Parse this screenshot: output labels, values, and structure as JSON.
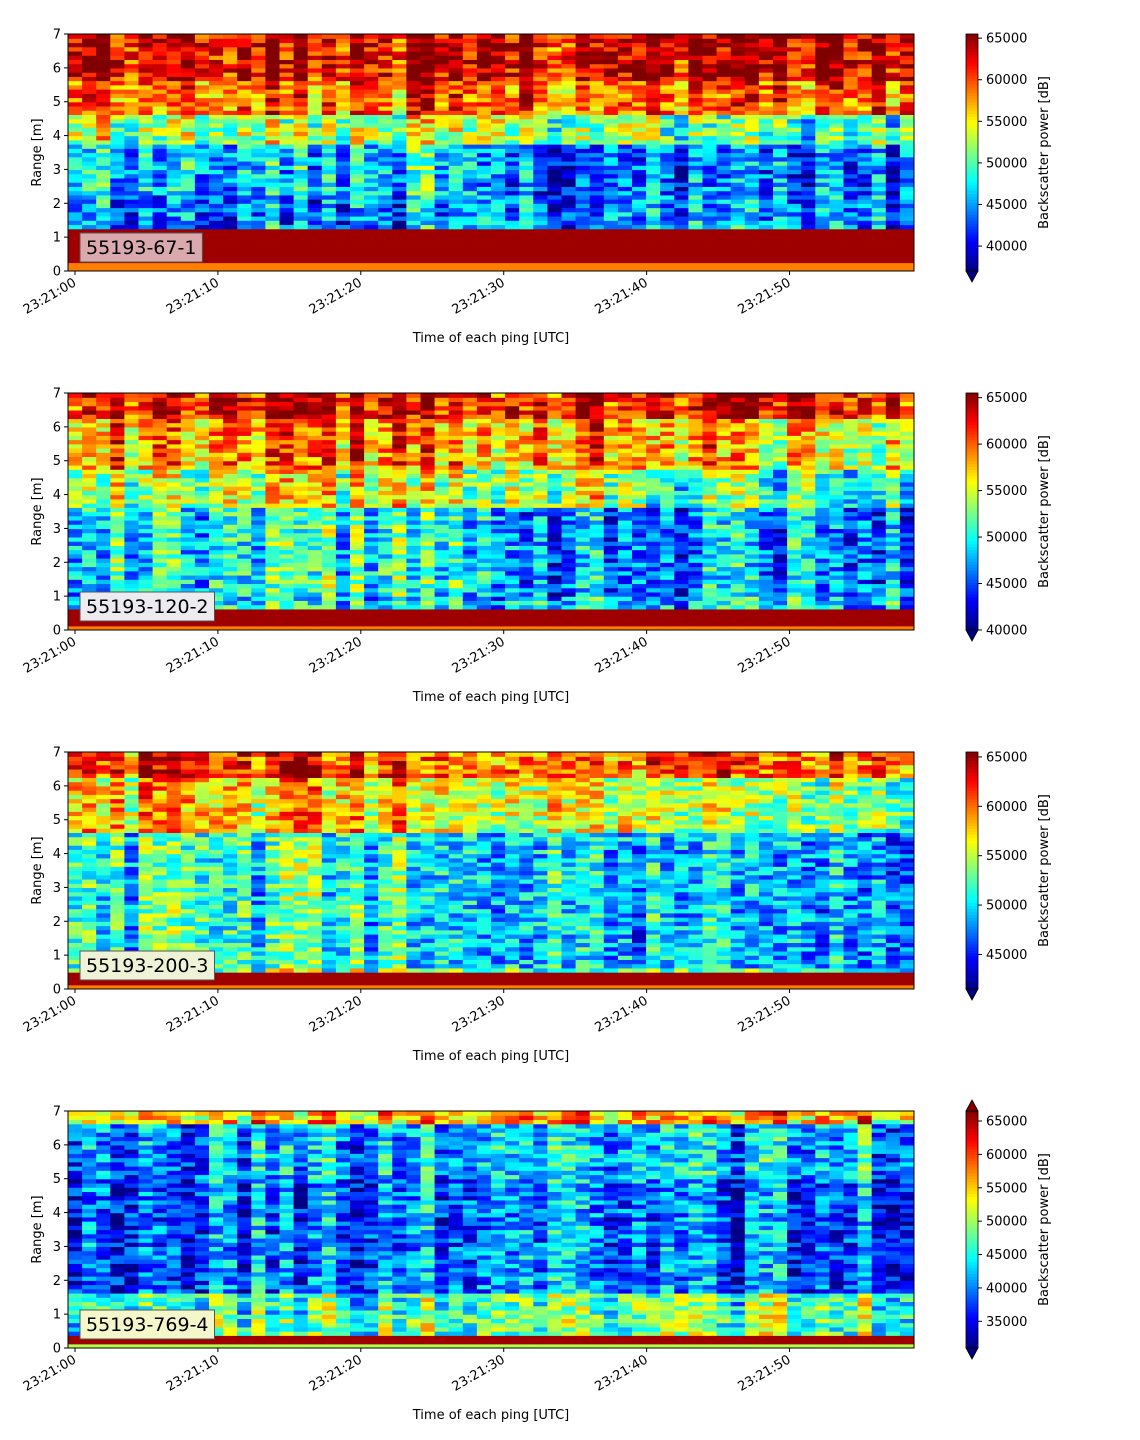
{
  "chart_data": [
    {
      "type": "heatmap",
      "label": "55193-67-1",
      "label_box_color": "#d9a9ae",
      "xlabel": "Time of each ping [UTC]",
      "ylabel": "Range [m]",
      "ylim": [
        0,
        7
      ],
      "yticks": [
        "0",
        "1",
        "2",
        "3",
        "4",
        "5",
        "6",
        "7"
      ],
      "xticks": [
        "23:21:00",
        "23:21:10",
        "23:21:20",
        "23:21:30",
        "23:21:40",
        "23:21:50"
      ],
      "colorbar_label": "Backscatter power [dB]",
      "clim": [
        37000,
        65500
      ],
      "colorbar_ticks": [
        40000,
        45000,
        50000,
        55000,
        60000,
        65000
      ],
      "colorbar_ticklabels": [
        "40000",
        "45000",
        "50000",
        "55000",
        "60000",
        "65000"
      ],
      "colorbar_extend": "min",
      "colormap": "jet",
      "bottom_band_m": [
        0.2,
        1.2
      ],
      "seed": 11
    },
    {
      "type": "heatmap",
      "label": "55193-120-2",
      "label_box_color": "#ececf0",
      "xlabel": "Time of each ping [UTC]",
      "ylabel": "Range [m]",
      "ylim": [
        0,
        7
      ],
      "yticks": [
        "0",
        "1",
        "2",
        "3",
        "4",
        "5",
        "6",
        "7"
      ],
      "xticks": [
        "23:21:00",
        "23:21:10",
        "23:21:20",
        "23:21:30",
        "23:21:40",
        "23:21:50"
      ],
      "colorbar_label": "Backscatter power [dB]",
      "clim": [
        40000,
        65500
      ],
      "colorbar_ticks": [
        40000,
        45000,
        50000,
        55000,
        60000,
        65000
      ],
      "colorbar_ticklabels": [
        "40000",
        "45000",
        "50000",
        "55000",
        "60000",
        "65000"
      ],
      "colorbar_extend": "min",
      "colormap": "jet",
      "bottom_band_m": [
        0.1,
        0.6
      ],
      "seed": 23
    },
    {
      "type": "heatmap",
      "label": "55193-200-3",
      "label_box_color": "#eef3d8",
      "xlabel": "Time of each ping [UTC]",
      "ylabel": "Range [m]",
      "ylim": [
        0,
        7
      ],
      "yticks": [
        "0",
        "1",
        "2",
        "3",
        "4",
        "5",
        "6",
        "7"
      ],
      "xticks": [
        "23:21:00",
        "23:21:10",
        "23:21:20",
        "23:21:30",
        "23:21:40",
        "23:21:50"
      ],
      "colorbar_label": "Backscatter power [dB]",
      "clim": [
        41500,
        65500
      ],
      "colorbar_ticks": [
        45000,
        50000,
        55000,
        60000,
        65000
      ],
      "colorbar_ticklabels": [
        "45000",
        "50000",
        "55000",
        "60000",
        "65000"
      ],
      "colorbar_extend": "min",
      "colormap": "jet",
      "bottom_band_m": [
        0.1,
        0.5
      ],
      "seed": 37
    },
    {
      "type": "heatmap",
      "label": "55193-769-4",
      "label_box_color": "#f3f7c9",
      "xlabel": "Time of each ping [UTC]",
      "ylabel": "Range [m]",
      "ylim": [
        0,
        7
      ],
      "yticks": [
        "0",
        "1",
        "2",
        "3",
        "4",
        "5",
        "6",
        "7"
      ],
      "xticks": [
        "23:21:00",
        "23:21:10",
        "23:21:20",
        "23:21:30",
        "23:21:40",
        "23:21:50"
      ],
      "colorbar_label": "Backscatter power [dB]",
      "clim": [
        31000,
        66500
      ],
      "colorbar_ticks": [
        35000,
        40000,
        45000,
        50000,
        55000,
        60000,
        65000
      ],
      "colorbar_ticklabels": [
        "35000",
        "40000",
        "45000",
        "50000",
        "55000",
        "60000",
        "65000"
      ],
      "colorbar_extend": "both",
      "colormap": "jet",
      "bottom_band_m": [
        0.1,
        0.35
      ],
      "seed": 53
    }
  ]
}
